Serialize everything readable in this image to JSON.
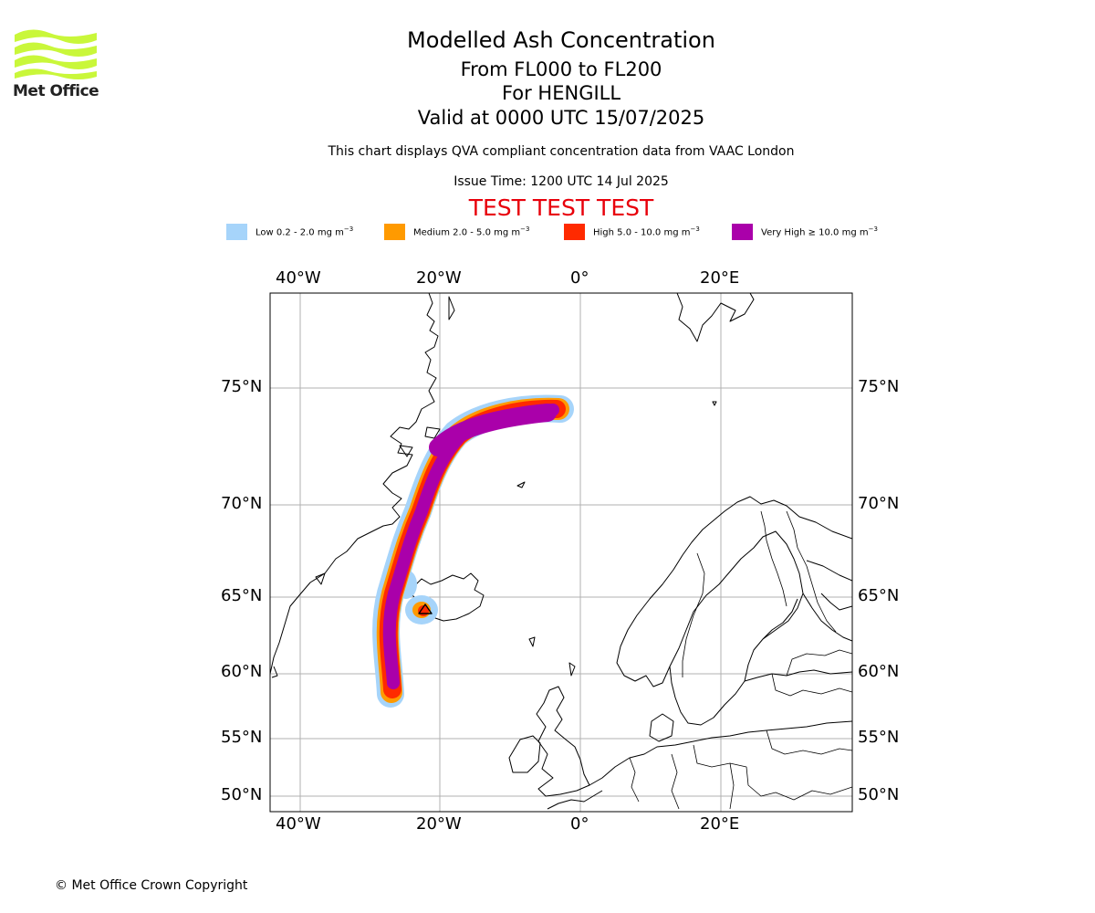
{
  "logo": {
    "text": "Met Office",
    "color": "#c9f73a"
  },
  "header": {
    "title": "Modelled Ash Concentration",
    "level_range": "From FL000 to FL200",
    "volcano": "For HENGILL",
    "valid_time": "Valid at 0000 UTC 15/07/2025",
    "note": "This chart displays QVA compliant concentration data from VAAC London",
    "issue_time": "Issue Time: 1200 UTC 14 Jul 2025",
    "test_banner": "TEST TEST TEST"
  },
  "legend": [
    {
      "label": "Low 0.2 - 2.0 mg m",
      "color": "#a6d4fa"
    },
    {
      "label": "Medium 2.0 - 5.0 mg m",
      "color": "#ff9a00"
    },
    {
      "label": "High 5.0 - 10.0 mg m",
      "color": "#ff2a00"
    },
    {
      "label": "Very High ≥ 10.0 mg m",
      "color": "#aa00aa"
    }
  ],
  "legend_unit_exponent": "−3",
  "map": {
    "longitude_labels": [
      "40°W",
      "20°W",
      "0°",
      "20°E"
    ],
    "latitude_labels": [
      "75°N",
      "70°N",
      "65°N",
      "60°N",
      "55°N",
      "50°N"
    ],
    "grid": true
  },
  "footer": {
    "copyright": "© Met Office Crown Copyright"
  }
}
